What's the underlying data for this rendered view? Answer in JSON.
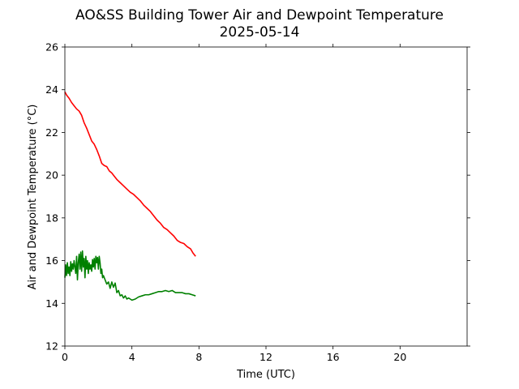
{
  "chart_data": {
    "type": "line",
    "title": "AO&SS Building Tower Air and Dewpoint Temperature",
    "subtitle": "2025-05-14",
    "xlabel": "Time (UTC)",
    "ylabel": "Air and Dewpoint Temperature (°C)",
    "xlim": [
      0,
      24
    ],
    "ylim": [
      12,
      26
    ],
    "xticks": [
      0,
      4,
      8,
      12,
      16,
      20
    ],
    "yticks": [
      12,
      14,
      16,
      18,
      20,
      22,
      24,
      26
    ],
    "grid": false,
    "series": [
      {
        "color": "#ff0000",
        "x": [
          0.0,
          0.1,
          0.25,
          0.4,
          0.55,
          0.7,
          0.85,
          1.0,
          1.15,
          1.3,
          1.45,
          1.6,
          1.75,
          1.9,
          2.05,
          2.2,
          2.35,
          2.5,
          2.65,
          2.8,
          2.95,
          3.1,
          3.3,
          3.5,
          3.7,
          3.9,
          4.1,
          4.3,
          4.5,
          4.7,
          4.9,
          5.1,
          5.3,
          5.5,
          5.7,
          5.9,
          6.1,
          6.3,
          6.5,
          6.7,
          6.9,
          7.1,
          7.3,
          7.5,
          7.65,
          7.8
        ],
        "y": [
          23.9,
          23.75,
          23.6,
          23.4,
          23.25,
          23.1,
          23.0,
          22.8,
          22.45,
          22.2,
          21.9,
          21.6,
          21.45,
          21.2,
          20.9,
          20.55,
          20.45,
          20.4,
          20.2,
          20.1,
          19.95,
          19.8,
          19.65,
          19.5,
          19.35,
          19.2,
          19.1,
          18.95,
          18.8,
          18.6,
          18.45,
          18.3,
          18.1,
          17.9,
          17.75,
          17.55,
          17.45,
          17.3,
          17.15,
          16.95,
          16.85,
          16.8,
          16.65,
          16.55,
          16.35,
          16.2
        ]
      },
      {
        "color": "#008000",
        "x": [
          0.0,
          0.05,
          0.1,
          0.15,
          0.2,
          0.25,
          0.3,
          0.35,
          0.4,
          0.45,
          0.5,
          0.55,
          0.6,
          0.65,
          0.7,
          0.75,
          0.8,
          0.85,
          0.9,
          0.95,
          1.0,
          1.05,
          1.1,
          1.15,
          1.2,
          1.25,
          1.3,
          1.35,
          1.4,
          1.45,
          1.5,
          1.55,
          1.6,
          1.65,
          1.7,
          1.75,
          1.8,
          1.85,
          1.9,
          1.95,
          2.0,
          2.05,
          2.1,
          2.15,
          2.2,
          2.25,
          2.3,
          2.4,
          2.5,
          2.6,
          2.7,
          2.8,
          2.9,
          3.0,
          3.1,
          3.2,
          3.3,
          3.4,
          3.5,
          3.6,
          3.7,
          3.8,
          3.9,
          4.0,
          4.2,
          4.4,
          4.6,
          4.8,
          5.0,
          5.2,
          5.4,
          5.6,
          5.8,
          6.0,
          6.2,
          6.4,
          6.6,
          6.8,
          7.0,
          7.2,
          7.4,
          7.6,
          7.8
        ],
        "y": [
          15.2,
          15.8,
          15.3,
          15.9,
          15.4,
          15.7,
          15.3,
          15.95,
          15.5,
          15.85,
          15.6,
          16.0,
          15.7,
          15.4,
          16.2,
          15.1,
          15.9,
          16.3,
          15.6,
          16.4,
          15.5,
          16.45,
          15.7,
          16.1,
          15.2,
          16.2,
          15.6,
          16.0,
          15.4,
          15.9,
          15.6,
          15.8,
          15.5,
          16.05,
          15.7,
          16.1,
          15.6,
          16.2,
          15.9,
          16.15,
          15.6,
          16.2,
          15.9,
          15.4,
          15.6,
          15.2,
          15.3,
          15.1,
          14.9,
          15.0,
          14.7,
          15.0,
          14.75,
          14.95,
          14.5,
          14.6,
          14.35,
          14.4,
          14.25,
          14.35,
          14.2,
          14.25,
          14.2,
          14.15,
          14.2,
          14.3,
          14.35,
          14.4,
          14.4,
          14.45,
          14.5,
          14.55,
          14.55,
          14.6,
          14.55,
          14.6,
          14.5,
          14.5,
          14.5,
          14.45,
          14.45,
          14.4,
          14.35
        ]
      }
    ]
  }
}
